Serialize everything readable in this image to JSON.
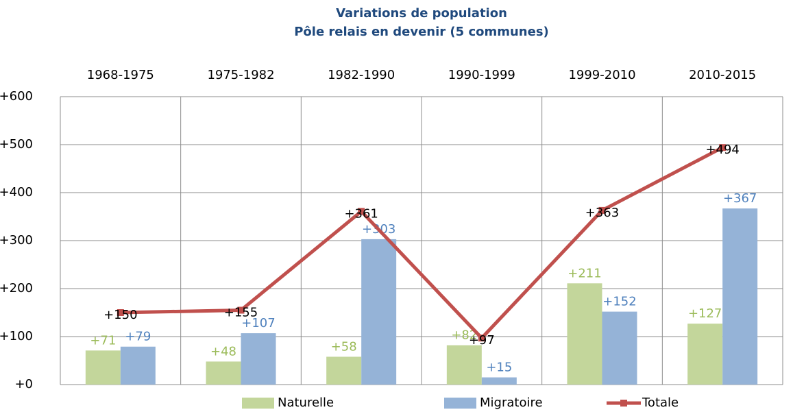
{
  "chart_data": {
    "type": "bar_line",
    "title": "Variations de population",
    "subtitle": "Pôle relais en devenir (5 communes)",
    "categories": [
      "1968-1975",
      "1975-1982",
      "1982-1990",
      "1990-1999",
      "1999-2010",
      "2010-2015"
    ],
    "series": [
      {
        "name": "Naturelle",
        "color": "#c3d69b",
        "label_color": "#9bbb59",
        "type": "bar",
        "values": [
          71,
          48,
          58,
          82,
          211,
          127
        ],
        "value_labels": [
          "+71",
          "+48",
          "+58",
          "+82",
          "+211",
          "+127"
        ]
      },
      {
        "name": "Migratoire",
        "color": "#95b3d7",
        "label_color": "#4f81bd",
        "type": "bar",
        "values": [
          79,
          107,
          303,
          15,
          152,
          367
        ],
        "value_labels": [
          "+79",
          "+107",
          "+303",
          "+15",
          "+152",
          "+367"
        ]
      },
      {
        "name": "Totale",
        "color": "#c0504d",
        "label_color": "#000000",
        "type": "line",
        "values": [
          150,
          155,
          361,
          97,
          363,
          494
        ],
        "value_labels": [
          "+150",
          "+155",
          "+361",
          "+97",
          "+363",
          "+494"
        ]
      }
    ],
    "ylim": [
      0,
      600
    ],
    "yticks": [
      {
        "value": 0,
        "label": "+0"
      },
      {
        "value": 100,
        "label": "+100"
      },
      {
        "value": 200,
        "label": "+200"
      },
      {
        "value": 300,
        "label": "+300"
      },
      {
        "value": 400,
        "label": "+400"
      },
      {
        "value": 500,
        "label": "+500"
      },
      {
        "value": 600,
        "label": "+600"
      }
    ],
    "grid": true,
    "legend": "bottom"
  }
}
